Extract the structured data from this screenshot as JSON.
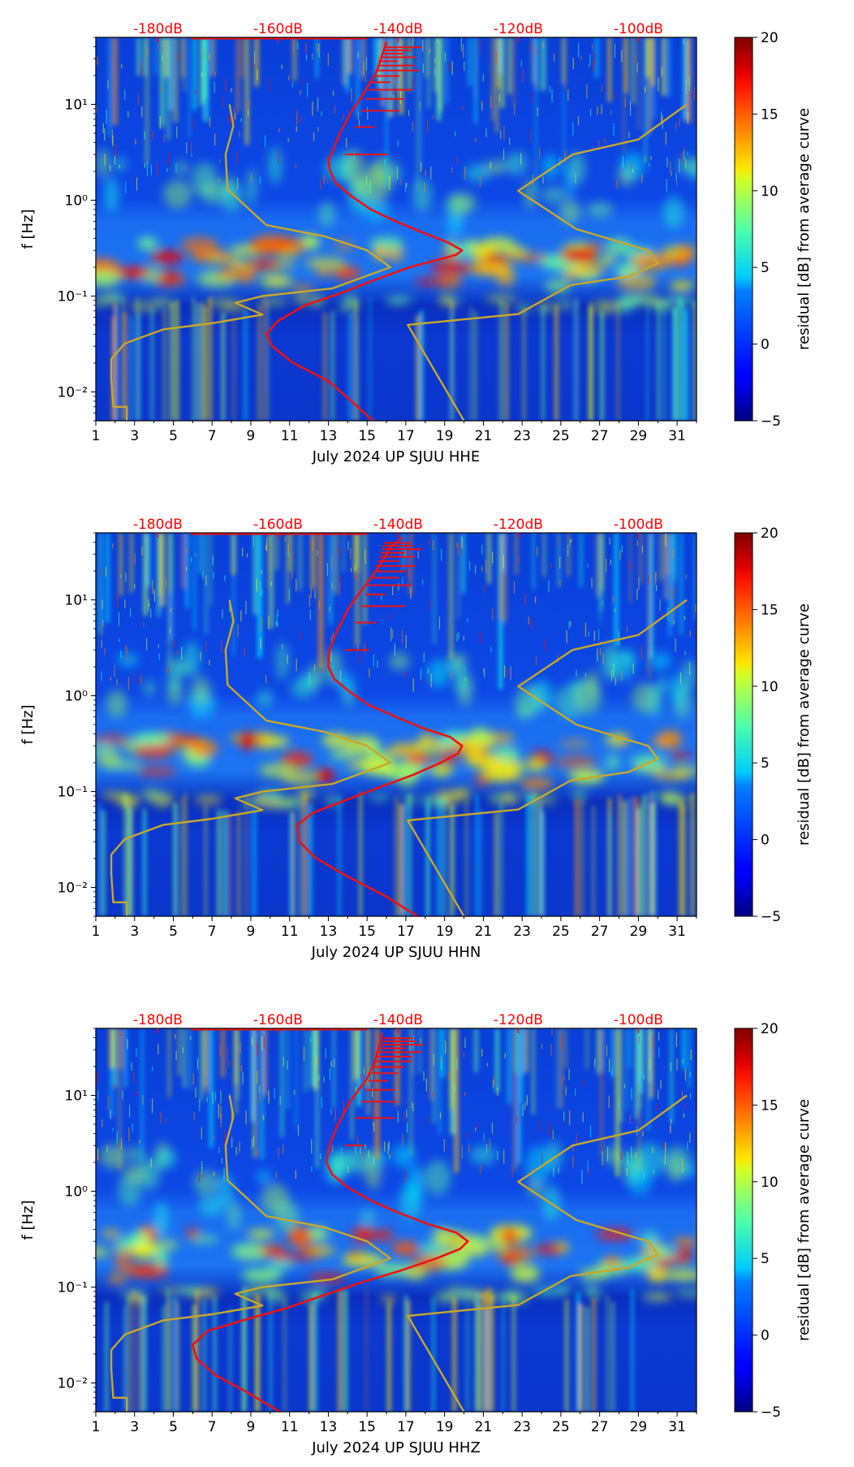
{
  "chart_data": [
    {
      "type": "heatmap",
      "title": "",
      "xlabel": "July 2024 UP SJUU  HHE",
      "ylabel": "f [Hz]",
      "xlim": [
        1,
        32
      ],
      "ylim": [
        0.005,
        50
      ],
      "yscale": "log",
      "x_ticks": [
        "1",
        "3",
        "5",
        "7",
        "9",
        "11",
        "13",
        "15",
        "17",
        "19",
        "21",
        "23",
        "25",
        "27",
        "29",
        "31"
      ],
      "y_ticks": [
        {
          "value": 0.01,
          "label": "10⁻²"
        },
        {
          "value": 0.1,
          "label": "10⁻¹"
        },
        {
          "value": 1,
          "label": "10⁰"
        },
        {
          "value": 10,
          "label": "10¹"
        }
      ],
      "top_axis_labels": [
        {
          "x": 4.2,
          "label": "-180dB"
        },
        {
          "x": 10.4,
          "label": "-160dB"
        },
        {
          "x": 16.6,
          "label": "-140dB"
        },
        {
          "x": 22.8,
          "label": "-120dB"
        },
        {
          "x": 29.0,
          "label": "-100dB"
        }
      ],
      "colorbar": {
        "label": "residual [dB] from average curve",
        "min": -5,
        "max": 20,
        "ticks": [
          "−5",
          "0",
          "5",
          "10",
          "15",
          "20"
        ]
      },
      "series": [
        {
          "name": "average PSD curve",
          "color": "#ee1111",
          "x": [
            15.3,
            14.2,
            13.0,
            11.2,
            10.1,
            9.8,
            10.4,
            11.8,
            13.8,
            15.5,
            17.2,
            18.7,
            19.6,
            19.9,
            19.2,
            18.0,
            16.5,
            15.2,
            14.2,
            13.4,
            13.1,
            13.0,
            13.2,
            13.4,
            13.6,
            13.9,
            14.2,
            14.6,
            15.0,
            15.5,
            16.0
          ],
          "y": [
            0.005,
            0.008,
            0.013,
            0.02,
            0.03,
            0.04,
            0.055,
            0.08,
            0.11,
            0.15,
            0.2,
            0.24,
            0.27,
            0.3,
            0.36,
            0.45,
            0.6,
            0.8,
            1.1,
            1.5,
            2.0,
            2.6,
            3.2,
            4.0,
            5.0,
            6.5,
            8.5,
            11,
            15,
            22,
            45
          ]
        },
        {
          "name": "low noise model",
          "color": "#c8a82a",
          "x": [
            2.6,
            2.6,
            1.9,
            1.8,
            1.8,
            2.5,
            4.5,
            7.0,
            9.6,
            8.2,
            9.6,
            13.2,
            16.2,
            15.0,
            12.8,
            9.8,
            7.8,
            7.7,
            8.1,
            7.9
          ],
          "y": [
            0.005,
            0.007,
            0.007,
            0.014,
            0.022,
            0.032,
            0.045,
            0.052,
            0.064,
            0.085,
            0.1,
            0.12,
            0.2,
            0.3,
            0.42,
            0.55,
            1.3,
            3.0,
            6.0,
            10
          ]
        },
        {
          "name": "high noise model",
          "color": "#c8a82a",
          "x": [
            20.0,
            17.1,
            22.8,
            25.5,
            28.5,
            30.0,
            29.5,
            25.8,
            22.8,
            25.6,
            29.0,
            31.5
          ],
          "y": [
            0.005,
            0.05,
            0.065,
            0.13,
            0.16,
            0.22,
            0.3,
            0.5,
            1.25,
            3.0,
            4.3,
            10
          ]
        }
      ]
    },
    {
      "type": "heatmap",
      "title": "",
      "xlabel": "July 2024 UP SJUU  HHN",
      "ylabel": "f [Hz]",
      "xlim": [
        1,
        32
      ],
      "ylim": [
        0.005,
        50
      ],
      "yscale": "log",
      "x_ticks": [
        "1",
        "3",
        "5",
        "7",
        "9",
        "11",
        "13",
        "15",
        "17",
        "19",
        "21",
        "23",
        "25",
        "27",
        "29",
        "31"
      ],
      "y_ticks": [
        {
          "value": 0.01,
          "label": "10⁻²"
        },
        {
          "value": 0.1,
          "label": "10⁻¹"
        },
        {
          "value": 1,
          "label": "10⁰"
        },
        {
          "value": 10,
          "label": "10¹"
        }
      ],
      "top_axis_labels": [
        {
          "x": 4.2,
          "label": "-180dB"
        },
        {
          "x": 10.4,
          "label": "-160dB"
        },
        {
          "x": 16.6,
          "label": "-140dB"
        },
        {
          "x": 22.8,
          "label": "-120dB"
        },
        {
          "x": 29.0,
          "label": "-100dB"
        }
      ],
      "colorbar": {
        "label": "residual [dB] from average curve",
        "min": -5,
        "max": 20,
        "ticks": [
          "−5",
          "0",
          "5",
          "10",
          "15",
          "20"
        ]
      },
      "series": [
        {
          "name": "average PSD curve",
          "color": "#ee1111",
          "x": [
            17.6,
            16.0,
            14.0,
            12.4,
            11.5,
            11.4,
            12.2,
            13.8,
            15.6,
            17.4,
            18.8,
            19.7,
            19.9,
            19.3,
            18.0,
            16.5,
            15.1,
            14.1,
            13.3,
            13.0,
            13.0,
            13.1,
            13.3,
            13.5,
            13.8,
            14.1,
            14.5,
            15.0,
            15.6,
            16.2,
            16.8
          ],
          "y": [
            0.005,
            0.008,
            0.013,
            0.02,
            0.03,
            0.045,
            0.06,
            0.08,
            0.11,
            0.15,
            0.2,
            0.25,
            0.3,
            0.37,
            0.45,
            0.6,
            0.8,
            1.1,
            1.5,
            2.0,
            2.6,
            3.2,
            4.0,
            5.0,
            6.5,
            8.5,
            11,
            15,
            22,
            35,
            45
          ]
        },
        {
          "name": "low noise model",
          "color": "#c8a82a",
          "x": [
            2.6,
            2.6,
            1.9,
            1.8,
            1.8,
            2.5,
            4.5,
            7.0,
            9.6,
            8.2,
            9.6,
            13.2,
            16.2,
            15.0,
            12.8,
            9.8,
            7.8,
            7.7,
            8.1,
            7.9
          ],
          "y": [
            0.005,
            0.007,
            0.007,
            0.014,
            0.022,
            0.032,
            0.045,
            0.052,
            0.064,
            0.085,
            0.1,
            0.12,
            0.2,
            0.3,
            0.42,
            0.55,
            1.3,
            3.0,
            6.0,
            10
          ]
        },
        {
          "name": "high noise model",
          "color": "#c8a82a",
          "x": [
            20.0,
            17.1,
            22.8,
            25.5,
            28.5,
            30.0,
            29.5,
            25.8,
            22.8,
            25.6,
            29.0,
            31.5
          ],
          "y": [
            0.005,
            0.05,
            0.065,
            0.13,
            0.16,
            0.22,
            0.3,
            0.5,
            1.25,
            3.0,
            4.3,
            10
          ]
        }
      ]
    },
    {
      "type": "heatmap",
      "title": "",
      "xlabel": "July 2024 UP SJUU  HHZ",
      "ylabel": "f [Hz]",
      "xlim": [
        1,
        32
      ],
      "ylim": [
        0.005,
        50
      ],
      "yscale": "log",
      "x_ticks": [
        "1",
        "3",
        "5",
        "7",
        "9",
        "11",
        "13",
        "15",
        "17",
        "19",
        "21",
        "23",
        "25",
        "27",
        "29",
        "31"
      ],
      "y_ticks": [
        {
          "value": 0.01,
          "label": "10⁻²"
        },
        {
          "value": 0.1,
          "label": "10⁻¹"
        },
        {
          "value": 1,
          "label": "10⁰"
        },
        {
          "value": 10,
          "label": "10¹"
        }
      ],
      "top_axis_labels": [
        {
          "x": 4.2,
          "label": "-180dB"
        },
        {
          "x": 10.4,
          "label": "-160dB"
        },
        {
          "x": 16.6,
          "label": "-140dB"
        },
        {
          "x": 22.8,
          "label": "-120dB"
        },
        {
          "x": 29.0,
          "label": "-100dB"
        }
      ],
      "colorbar": {
        "label": "residual [dB] from average curve",
        "min": -5,
        "max": 20,
        "ticks": [
          "−5",
          "0",
          "5",
          "10",
          "15",
          "20"
        ]
      },
      "series": [
        {
          "name": "average PSD curve",
          "color": "#ee1111",
          "x": [
            10.5,
            8.8,
            7.2,
            6.2,
            6.0,
            6.8,
            8.6,
            10.8,
            12.6,
            14.6,
            16.8,
            18.6,
            19.8,
            20.2,
            19.6,
            18.2,
            16.6,
            15.2,
            14.0,
            13.2,
            12.9,
            13.0,
            13.1,
            13.3,
            13.5,
            13.8,
            14.1,
            14.5,
            15.0,
            15.4,
            15.8
          ],
          "y": [
            0.005,
            0.008,
            0.012,
            0.018,
            0.025,
            0.035,
            0.045,
            0.06,
            0.08,
            0.11,
            0.15,
            0.2,
            0.25,
            0.3,
            0.37,
            0.45,
            0.6,
            0.8,
            1.1,
            1.5,
            2.0,
            2.6,
            3.2,
            4.0,
            5.0,
            6.5,
            8.5,
            11,
            15,
            22,
            45
          ]
        },
        {
          "name": "low noise model",
          "color": "#c8a82a",
          "x": [
            2.6,
            2.6,
            1.9,
            1.8,
            1.8,
            2.5,
            4.5,
            7.0,
            9.6,
            8.2,
            9.6,
            13.2,
            16.2,
            15.0,
            12.8,
            9.8,
            7.8,
            7.7,
            8.1,
            7.9
          ],
          "y": [
            0.005,
            0.007,
            0.007,
            0.014,
            0.022,
            0.032,
            0.045,
            0.052,
            0.064,
            0.085,
            0.1,
            0.12,
            0.2,
            0.3,
            0.42,
            0.55,
            1.3,
            3.0,
            6.0,
            10
          ]
        },
        {
          "name": "high noise model",
          "color": "#c8a82a",
          "x": [
            20.0,
            17.1,
            22.8,
            25.5,
            28.5,
            30.0,
            29.5,
            25.8,
            22.8,
            25.6,
            29.0,
            31.5
          ],
          "y": [
            0.005,
            0.05,
            0.065,
            0.13,
            0.16,
            0.22,
            0.3,
            0.5,
            1.25,
            3.0,
            4.3,
            10
          ]
        }
      ]
    }
  ]
}
